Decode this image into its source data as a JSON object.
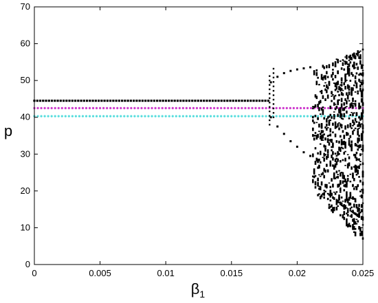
{
  "chart_data": {
    "type": "scatter",
    "title": "",
    "xlabel": "β",
    "xlabel_subscript": "1",
    "ylabel": "p",
    "xlim": [
      0,
      0.025
    ],
    "ylim": [
      0,
      70
    ],
    "x_ticks": [
      "0",
      "0.005",
      "0.01",
      "0.015",
      "0.02",
      "0.025"
    ],
    "x_tick_values": [
      0,
      0.005,
      0.01,
      0.015,
      0.02,
      0.025
    ],
    "y_ticks": [
      "0",
      "10",
      "20",
      "30",
      "40",
      "50",
      "60",
      "70"
    ],
    "y_tick_values": [
      0,
      10,
      20,
      30,
      40,
      50,
      60,
      70
    ],
    "grid": false,
    "legend": "none",
    "series": [
      {
        "color": "#000000",
        "description_role": "bifurcation-points",
        "stable_branch": {
          "x_from": 0,
          "x_to": 0.0178,
          "y": 44.5
        },
        "period2_upper": [
          [
            0.018,
            49.5
          ],
          [
            0.0185,
            51.0
          ],
          [
            0.019,
            52.0
          ],
          [
            0.0195,
            52.6
          ],
          [
            0.02,
            53.0
          ],
          [
            0.0205,
            53.3
          ],
          [
            0.021,
            53.6
          ]
        ],
        "period2_lower": [
          [
            0.018,
            40.0
          ],
          [
            0.0185,
            37.5
          ],
          [
            0.019,
            35.5
          ],
          [
            0.0195,
            33.5
          ],
          [
            0.02,
            32.0
          ],
          [
            0.0205,
            30.5
          ],
          [
            0.021,
            29.5
          ]
        ],
        "chaotic_range": {
          "x_from": 0.0212,
          "x_to": 0.025,
          "y_min_start": 20,
          "y_min_end": 6,
          "y_max_start": 54,
          "y_max_end": 58.5
        }
      },
      {
        "color": "#cc33cc",
        "description_role": "dotted-line",
        "x_from": 0,
        "x_to": 0.025,
        "y": 42.5
      },
      {
        "color": "#55dddd",
        "description_role": "dotted-line",
        "x_from": 0,
        "x_to": 0.025,
        "y": 40.3
      }
    ]
  }
}
